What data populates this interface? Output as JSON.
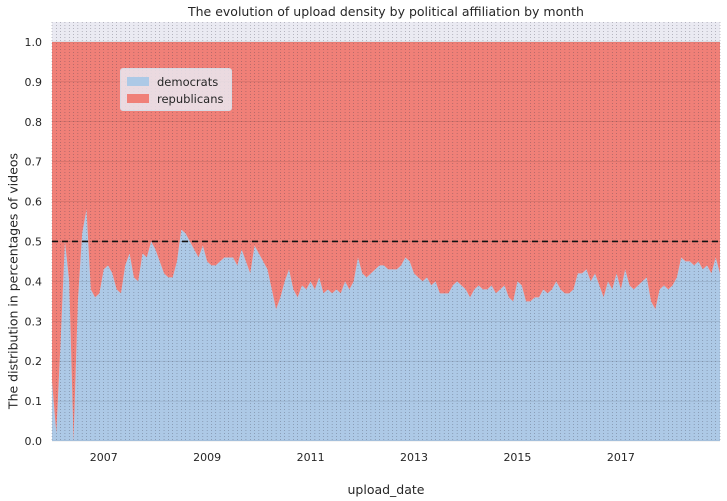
{
  "chart_data": {
    "type": "area",
    "stacked": true,
    "normalized": true,
    "title": "The evolution of upload density by political affiliation by month",
    "xlabel": "upload_date",
    "ylabel": "The distribution in percentages of videos",
    "ylim": [
      0,
      1.05
    ],
    "xlim": [
      "2006-01",
      "2018-12"
    ],
    "x_tick_labels": [
      "2007",
      "2009",
      "2011",
      "2013",
      "2015",
      "2017"
    ],
    "y_tick_labels": [
      "0.0",
      "0.1",
      "0.2",
      "0.3",
      "0.4",
      "0.5",
      "0.6",
      "0.7",
      "0.8",
      "0.9",
      "1.0"
    ],
    "grid": true,
    "legend_position": "upper-left",
    "reference_line": {
      "y": 0.5,
      "style": "dashed",
      "color": "#111111"
    },
    "x": [
      "2006-01",
      "2006-02",
      "2006-03",
      "2006-04",
      "2006-05",
      "2006-06",
      "2006-07",
      "2006-08",
      "2006-09",
      "2006-10",
      "2006-11",
      "2006-12",
      "2007-01",
      "2007-02",
      "2007-03",
      "2007-04",
      "2007-05",
      "2007-06",
      "2007-07",
      "2007-08",
      "2007-09",
      "2007-10",
      "2007-11",
      "2007-12",
      "2008-01",
      "2008-02",
      "2008-03",
      "2008-04",
      "2008-05",
      "2008-06",
      "2008-07",
      "2008-08",
      "2008-09",
      "2008-10",
      "2008-11",
      "2008-12",
      "2009-01",
      "2009-02",
      "2009-03",
      "2009-04",
      "2009-05",
      "2009-06",
      "2009-07",
      "2009-08",
      "2009-09",
      "2009-10",
      "2009-11",
      "2009-12",
      "2010-01",
      "2010-02",
      "2010-03",
      "2010-04",
      "2010-05",
      "2010-06",
      "2010-07",
      "2010-08",
      "2010-09",
      "2010-10",
      "2010-11",
      "2010-12",
      "2011-01",
      "2011-02",
      "2011-03",
      "2011-04",
      "2011-05",
      "2011-06",
      "2011-07",
      "2011-08",
      "2011-09",
      "2011-10",
      "2011-11",
      "2011-12",
      "2012-01",
      "2012-02",
      "2012-03",
      "2012-04",
      "2012-05",
      "2012-06",
      "2012-07",
      "2012-08",
      "2012-09",
      "2012-10",
      "2012-11",
      "2012-12",
      "2013-01",
      "2013-02",
      "2013-03",
      "2013-04",
      "2013-05",
      "2013-06",
      "2013-07",
      "2013-08",
      "2013-09",
      "2013-10",
      "2013-11",
      "2013-12",
      "2014-01",
      "2014-02",
      "2014-03",
      "2014-04",
      "2014-05",
      "2014-06",
      "2014-07",
      "2014-08",
      "2014-09",
      "2014-10",
      "2014-11",
      "2014-12",
      "2015-01",
      "2015-02",
      "2015-03",
      "2015-04",
      "2015-05",
      "2015-06",
      "2015-07",
      "2015-08",
      "2015-09",
      "2015-10",
      "2015-11",
      "2015-12",
      "2016-01",
      "2016-02",
      "2016-03",
      "2016-04",
      "2016-05",
      "2016-06",
      "2016-07",
      "2016-08",
      "2016-09",
      "2016-10",
      "2016-11",
      "2016-12",
      "2017-01",
      "2017-02",
      "2017-03",
      "2017-04",
      "2017-05",
      "2017-06",
      "2017-07",
      "2017-08",
      "2017-09",
      "2017-10",
      "2017-11",
      "2017-12",
      "2018-01",
      "2018-02",
      "2018-03",
      "2018-04",
      "2018-05",
      "2018-06",
      "2018-07",
      "2018-08",
      "2018-09",
      "2018-10",
      "2018-11",
      "2018-12"
    ],
    "series": [
      {
        "name": "democrats",
        "color": "#adc9e6",
        "values": [
          0.15,
          0.02,
          0.25,
          0.5,
          0.4,
          0.0,
          0.35,
          0.52,
          0.58,
          0.38,
          0.36,
          0.37,
          0.43,
          0.44,
          0.42,
          0.38,
          0.37,
          0.44,
          0.47,
          0.41,
          0.4,
          0.47,
          0.46,
          0.5,
          0.48,
          0.45,
          0.42,
          0.41,
          0.41,
          0.45,
          0.53,
          0.52,
          0.5,
          0.48,
          0.46,
          0.49,
          0.45,
          0.44,
          0.44,
          0.45,
          0.46,
          0.46,
          0.46,
          0.44,
          0.48,
          0.45,
          0.42,
          0.49,
          0.47,
          0.45,
          0.43,
          0.38,
          0.33,
          0.36,
          0.4,
          0.43,
          0.38,
          0.36,
          0.39,
          0.38,
          0.4,
          0.38,
          0.41,
          0.37,
          0.38,
          0.37,
          0.38,
          0.37,
          0.4,
          0.38,
          0.4,
          0.46,
          0.42,
          0.41,
          0.42,
          0.43,
          0.44,
          0.44,
          0.43,
          0.43,
          0.43,
          0.44,
          0.46,
          0.45,
          0.42,
          0.41,
          0.4,
          0.41,
          0.39,
          0.4,
          0.37,
          0.37,
          0.37,
          0.39,
          0.4,
          0.39,
          0.38,
          0.36,
          0.38,
          0.39,
          0.38,
          0.38,
          0.39,
          0.37,
          0.38,
          0.39,
          0.36,
          0.35,
          0.4,
          0.39,
          0.35,
          0.35,
          0.36,
          0.36,
          0.38,
          0.37,
          0.38,
          0.4,
          0.38,
          0.37,
          0.37,
          0.38,
          0.42,
          0.42,
          0.43,
          0.4,
          0.42,
          0.39,
          0.36,
          0.4,
          0.38,
          0.42,
          0.38,
          0.43,
          0.39,
          0.38,
          0.39,
          0.4,
          0.41,
          0.35,
          0.33,
          0.38,
          0.39,
          0.38,
          0.39,
          0.41,
          0.46,
          0.45,
          0.45,
          0.44,
          0.45,
          0.43,
          0.44,
          0.42,
          0.46,
          0.42
        ]
      },
      {
        "name": "republicans",
        "color": "#f08078",
        "values": [
          0.85,
          0.98,
          0.75,
          0.5,
          0.6,
          1.0,
          0.65,
          0.48,
          0.42,
          0.62,
          0.64,
          0.63,
          0.57,
          0.56,
          0.58,
          0.62,
          0.63,
          0.56,
          0.53,
          0.59,
          0.6,
          0.53,
          0.54,
          0.5,
          0.52,
          0.55,
          0.58,
          0.59,
          0.59,
          0.55,
          0.47,
          0.48,
          0.5,
          0.52,
          0.54,
          0.51,
          0.55,
          0.56,
          0.56,
          0.55,
          0.54,
          0.54,
          0.54,
          0.56,
          0.52,
          0.55,
          0.58,
          0.51,
          0.53,
          0.55,
          0.57,
          0.62,
          0.67,
          0.64,
          0.6,
          0.57,
          0.62,
          0.64,
          0.61,
          0.62,
          0.6,
          0.62,
          0.59,
          0.63,
          0.62,
          0.63,
          0.62,
          0.63,
          0.6,
          0.62,
          0.6,
          0.54,
          0.58,
          0.59,
          0.58,
          0.57,
          0.56,
          0.56,
          0.57,
          0.57,
          0.57,
          0.56,
          0.54,
          0.55,
          0.58,
          0.59,
          0.6,
          0.59,
          0.61,
          0.6,
          0.63,
          0.63,
          0.63,
          0.61,
          0.6,
          0.61,
          0.62,
          0.64,
          0.62,
          0.61,
          0.62,
          0.62,
          0.61,
          0.63,
          0.62,
          0.61,
          0.64,
          0.65,
          0.6,
          0.61,
          0.65,
          0.65,
          0.64,
          0.64,
          0.62,
          0.63,
          0.62,
          0.6,
          0.62,
          0.63,
          0.63,
          0.62,
          0.58,
          0.58,
          0.57,
          0.6,
          0.58,
          0.61,
          0.64,
          0.6,
          0.62,
          0.58,
          0.62,
          0.57,
          0.61,
          0.62,
          0.61,
          0.6,
          0.59,
          0.65,
          0.67,
          0.62,
          0.61,
          0.62,
          0.61,
          0.59,
          0.54,
          0.55,
          0.55,
          0.56,
          0.55,
          0.57,
          0.56,
          0.58,
          0.54,
          0.58
        ]
      }
    ]
  }
}
